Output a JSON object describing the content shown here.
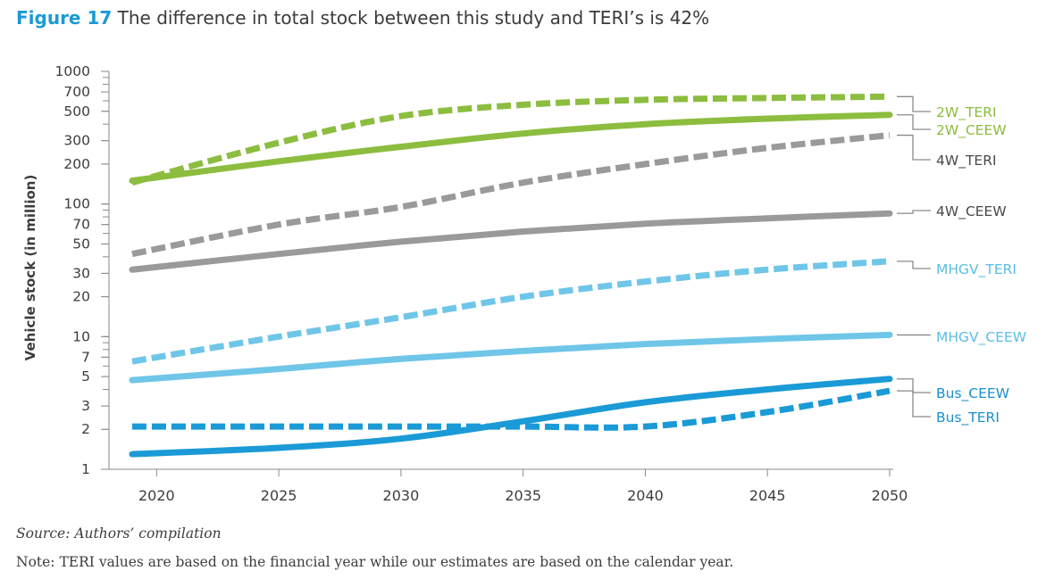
{
  "figure": {
    "number": "Figure 17",
    "title": "The difference in total stock between this study and TERI’s is 42%"
  },
  "source": "Source: Authors’ compilation",
  "note": "Note: TERI values are based on the financial year while our estimates are based on the calendar year.",
  "chart_data": {
    "type": "line",
    "title": "The difference in total stock between this study and TERI’s is 42%",
    "xlabel": "",
    "ylabel": "Vehicle stock (in million)",
    "yscale": "log",
    "ylim": [
      1,
      1000
    ],
    "xlim": [
      2019,
      2050
    ],
    "x_ticks": [
      2020,
      2025,
      2030,
      2035,
      2040,
      2045,
      2050
    ],
    "y_ticks": [
      1,
      2,
      3,
      5,
      7,
      10,
      20,
      30,
      50,
      70,
      100,
      200,
      300,
      500,
      700,
      1000
    ],
    "grid": false,
    "legend": "direct labels at right end",
    "x": [
      2019,
      2025,
      2030,
      2035,
      2040,
      2045,
      2050
    ],
    "series": [
      {
        "name": "2W_TERI",
        "color": "#8cbd3f",
        "dash": true,
        "values": [
          145,
          290,
          460,
          560,
          610,
          630,
          645
        ]
      },
      {
        "name": "2W_CEEW",
        "color": "#8cbd3f",
        "dash": false,
        "values": [
          150,
          210,
          270,
          340,
          400,
          440,
          470
        ]
      },
      {
        "name": "4W_TERI",
        "color": "#9a9a9a",
        "dash": true,
        "values": [
          42,
          70,
          95,
          145,
          200,
          265,
          330
        ]
      },
      {
        "name": "4W_CEEW",
        "color": "#9a9a9a",
        "dash": false,
        "values": [
          32,
          42,
          52,
          62,
          71,
          78,
          85
        ]
      },
      {
        "name": "MHGV_TERI",
        "color": "#6fc6e8",
        "dash": true,
        "values": [
          6.5,
          10,
          14,
          20,
          26,
          32,
          37
        ]
      },
      {
        "name": "MHGV_CEEW",
        "color": "#6fc6e8",
        "dash": false,
        "values": [
          4.7,
          5.7,
          6.8,
          7.8,
          8.8,
          9.6,
          10.3
        ]
      },
      {
        "name": "Bus_CEEW",
        "color": "#1a9ad6",
        "dash": false,
        "values": [
          1.3,
          1.45,
          1.7,
          2.3,
          3.2,
          4.0,
          4.8
        ]
      },
      {
        "name": "Bus_TERI",
        "color": "#1a9ad6",
        "dash": true,
        "values": [
          2.1,
          2.1,
          2.1,
          2.1,
          2.1,
          2.7,
          3.9
        ]
      }
    ]
  }
}
